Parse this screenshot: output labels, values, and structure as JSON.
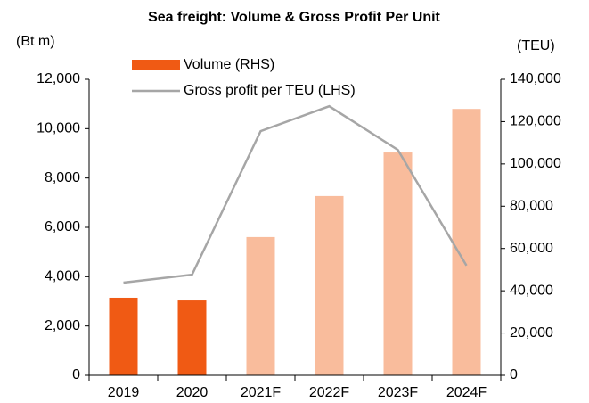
{
  "chart_data": {
    "type": "bar_line",
    "title": "Sea freight: Volume & Gross Profit Per Unit",
    "y_label": "(Bt m)",
    "y2_label": "(TEU)",
    "categories": [
      "2019",
      "2020",
      "2021F",
      "2022F",
      "2023F",
      "2024F"
    ],
    "series": [
      {
        "name": "Volume (RHS)",
        "type": "bar",
        "axis": "y2",
        "color": "#f05a14",
        "colors": [
          "#f05a14",
          "#f05a14",
          "#f9bc9c",
          "#f9bc9c",
          "#f9bc9c",
          "#f9bc9c"
        ],
        "values": [
          36700,
          35400,
          65400,
          84800,
          105400,
          126000
        ]
      },
      {
        "name": "Gross profit per TEU (LHS)",
        "type": "line",
        "axis": "y",
        "color": "#a6a6a6",
        "values": [
          3760,
          4080,
          9900,
          10910,
          9140,
          4450
        ]
      }
    ],
    "ylim": [
      0,
      12000
    ],
    "yticks": [
      0,
      {
        "value": 2000,
        "label": "2,000"
      },
      {
        "value": 4000,
        "label": "4,000"
      },
      {
        "value": 6000,
        "label": "6,000"
      },
      {
        "value": 8000,
        "label": "8,000"
      },
      {
        "value": 10000,
        "label": "10,000"
      },
      {
        "value": 12000,
        "label": "12,000"
      }
    ],
    "y2lim": [
      0,
      140000
    ],
    "y2ticks": [
      0,
      {
        "value": 20000,
        "label": "20,000"
      },
      {
        "value": 40000,
        "label": "40,000"
      },
      {
        "value": 60000,
        "label": "60,000"
      },
      {
        "value": 80000,
        "label": "80,000"
      },
      {
        "value": 100000,
        "label": "100,000"
      },
      {
        "value": 120000,
        "label": "120,000"
      },
      {
        "value": 140000,
        "label": "140,000"
      }
    ],
    "grid": false,
    "legend": "top-left"
  }
}
